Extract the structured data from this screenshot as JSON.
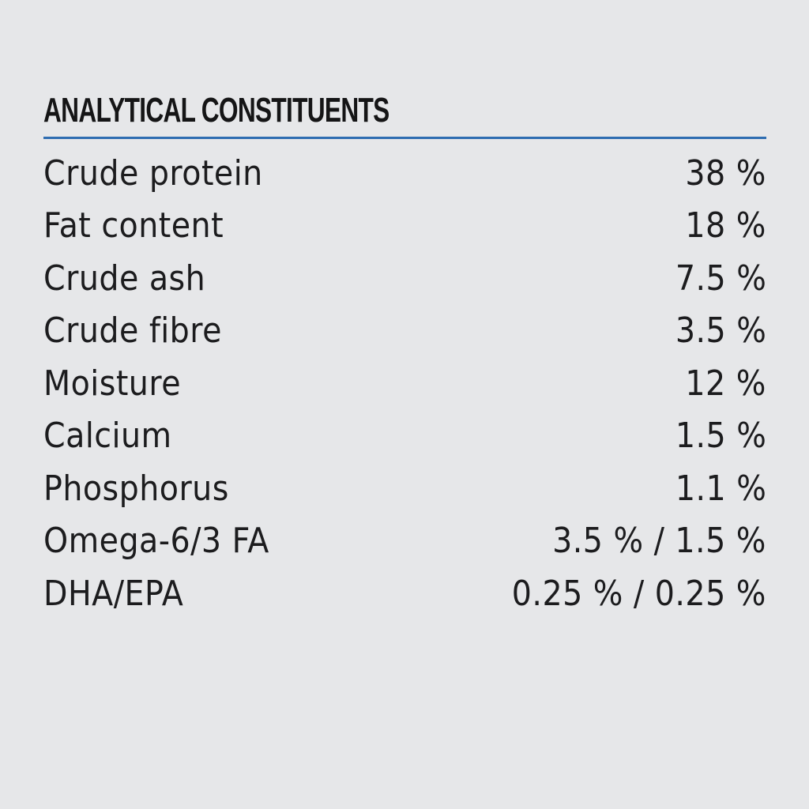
{
  "heading": "ANALYTICAL CONSTITUENTS",
  "colors": {
    "background": "#e6e7e9",
    "text": "#1c1c1e",
    "rule": "#2f6db1"
  },
  "rows": [
    {
      "label": "Crude protein",
      "value": "38 %"
    },
    {
      "label": "Fat content",
      "value": "18 %"
    },
    {
      "label": "Crude ash",
      "value": "7.5 %"
    },
    {
      "label": "Crude fibre",
      "value": "3.5 %"
    },
    {
      "label": "Moisture",
      "value": "12 %"
    },
    {
      "label": "Calcium",
      "value": "1.5 %"
    },
    {
      "label": "Phosphorus",
      "value": "1.1 %"
    },
    {
      "label": "Omega-6/3 FA",
      "value": "3.5 % / 1.5 %"
    },
    {
      "label": "DHA/EPA",
      "value": "0.25 % / 0.25 %"
    }
  ]
}
